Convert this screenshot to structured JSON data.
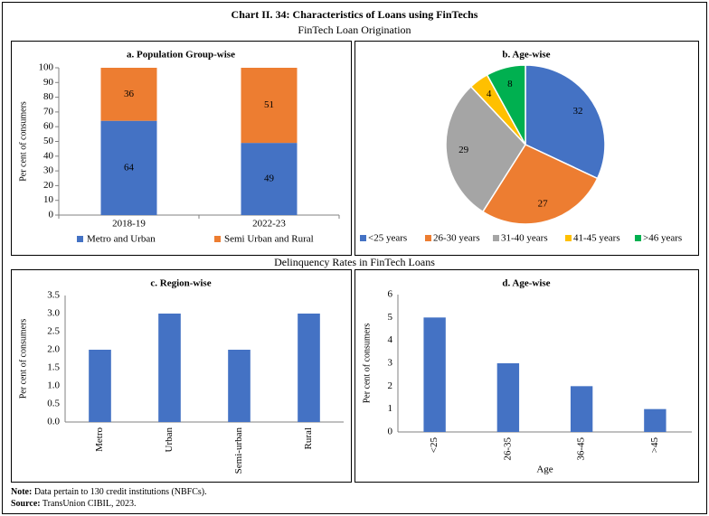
{
  "title": "Chart II. 34: Characteristics of Loans using FinTechs",
  "subtitle": "FinTech Loan Origination",
  "section_title": "Delinquency Rates in FinTech Loans",
  "note": {
    "label": "Note:",
    "text": "Data pertain to 130 credit institutions (NBFCs)."
  },
  "source": {
    "label": "Source:",
    "text": "TransUnion CIBIL, 2023."
  },
  "chart_data": [
    {
      "type": "stacked_bar",
      "title": "a. Population Group-wise",
      "ylabel": "Per cent of consumers",
      "categories": [
        "2018-19",
        "2022-23"
      ],
      "series": [
        {
          "name": "Metro and Urban",
          "color": "#4472c4",
          "values": [
            64,
            49
          ]
        },
        {
          "name": "Semi Urban and Rural",
          "color": "#ed7d31",
          "values": [
            36,
            51
          ]
        }
      ],
      "ylim": [
        0,
        100
      ],
      "yticks": [
        0,
        10,
        20,
        30,
        40,
        50,
        60,
        70,
        80,
        90,
        100
      ],
      "legend": "bottom"
    },
    {
      "type": "pie",
      "title": "b. Age-wise",
      "categories": [
        "<25 years",
        "26-30 years",
        "31-40 years",
        "41-45 years",
        ">46 years"
      ],
      "values": [
        32,
        27,
        29,
        4,
        8
      ],
      "colors": [
        "#4472c4",
        "#ed7d31",
        "#a5a5a5",
        "#ffc000",
        "#00b050"
      ],
      "legend": "bottom"
    },
    {
      "type": "bar",
      "title": "c. Region-wise",
      "ylabel": "Per cent of consumers",
      "categories": [
        "Metro",
        "Urban",
        "Semi-urban",
        "Rural"
      ],
      "values": [
        2,
        3,
        2,
        3
      ],
      "color": "#4472c4",
      "ylim": [
        0,
        3.5
      ],
      "yticks": [
        {
          "value": 0,
          "label": "0.0"
        },
        0.5,
        {
          "value": 1,
          "label": "1.0"
        },
        1.5,
        {
          "value": 2,
          "label": "2.0"
        },
        2.5,
        {
          "value": 3,
          "label": "3.0"
        },
        3.5
      ]
    },
    {
      "type": "bar",
      "title": "d. Age-wise",
      "ylabel": "Per cent of consumers",
      "xlabel": "Age",
      "categories": [
        "<25",
        "26-35",
        "36-45",
        ">45"
      ],
      "values": [
        5,
        3,
        2,
        1
      ],
      "color": "#4472c4",
      "ylim": [
        0,
        6
      ],
      "yticks": [
        0,
        1,
        2,
        3,
        4,
        5,
        6
      ]
    }
  ]
}
